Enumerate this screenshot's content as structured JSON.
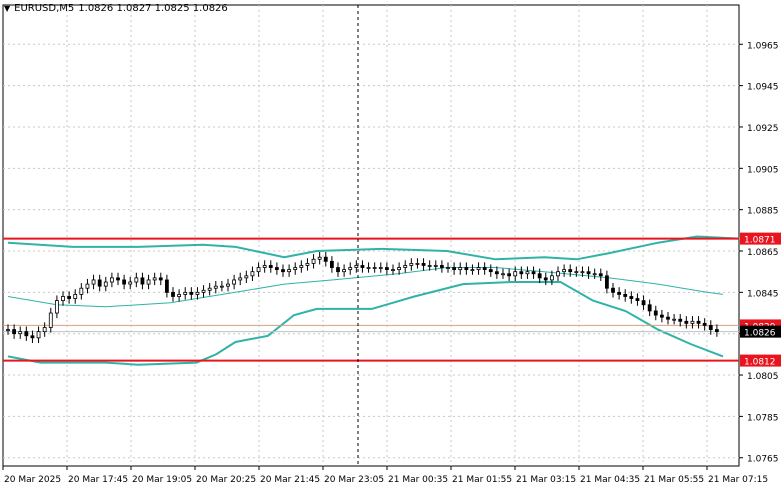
{
  "header": {
    "symbol_timeframe": "EURUSD,M5",
    "ohlc": "1.0826 1.0827 1.0825 1.0826",
    "menu_icon": "triangle-down-icon"
  },
  "colors": {
    "background": "#ffffff",
    "grid": "#c8c8c8",
    "candle": "#000000",
    "band": "#2fb3a8",
    "resistance_line": "#e8141e",
    "support_line": "#e8141e",
    "bid_line": "#c0c0c0",
    "price_label_bg": "#000000",
    "level_label_bg": "#e8141e"
  },
  "chart_data": {
    "type": "candlestick",
    "y_ticks": [
      "1.0965",
      "1.0945",
      "1.0925",
      "1.0905",
      "1.0885",
      "1.0865",
      "1.0845",
      "1.0825",
      "1.0805",
      "1.0785",
      "1.0765"
    ],
    "x_ticks": [
      "20 Mar 2025",
      "20 Mar 17:45",
      "20 Mar 19:05",
      "20 Mar 20:25",
      "20 Mar 21:45",
      "20 Mar 23:05",
      "21 Mar 00:35",
      "21 Mar 01:55",
      "21 Mar 03:15",
      "21 Mar 04:35",
      "21 Mar 05:55",
      "21 Mar 07:15"
    ],
    "ylim": [
      1.0761,
      1.0984
    ],
    "horizontal_levels": [
      {
        "label": "1.0871",
        "value": 1.0871,
        "style": "resistance"
      },
      {
        "label": "1.0829",
        "value": 1.0829,
        "style": "level"
      },
      {
        "label": "1.0812",
        "value": 1.0812,
        "style": "support"
      }
    ],
    "current_price": {
      "label": "1.0826",
      "value": 1.0826
    },
    "close_series": [
      1.0827,
      1.0825,
      1.0826,
      1.0824,
      1.0823,
      1.0826,
      1.0828,
      1.0835,
      1.0841,
      1.0843,
      1.0842,
      1.0844,
      1.0847,
      1.0849,
      1.0851,
      1.0848,
      1.085,
      1.0852,
      1.0851,
      1.0849,
      1.085,
      1.0852,
      1.0849,
      1.0851,
      1.0852,
      1.0851,
      1.0845,
      1.0843,
      1.0844,
      1.0845,
      1.0844,
      1.0845,
      1.0846,
      1.0847,
      1.0848,
      1.0848,
      1.0849,
      1.0851,
      1.0852,
      1.0853,
      1.0855,
      1.0857,
      1.0858,
      1.0857,
      1.0856,
      1.0855,
      1.0856,
      1.0857,
      1.0858,
      1.0859,
      1.0861,
      1.0862,
      1.086,
      1.0857,
      1.0855,
      1.0856,
      1.0857,
      1.0858,
      1.0857,
      1.0857,
      1.0857,
      1.0857,
      1.0856,
      1.0856,
      1.0857,
      1.0858,
      1.0859,
      1.0859,
      1.0858,
      1.0858,
      1.0858,
      1.0857,
      1.0857,
      1.0856,
      1.0857,
      1.0856,
      1.0856,
      1.0857,
      1.0856,
      1.0855,
      1.0854,
      1.0854,
      1.0853,
      1.0855,
      1.0854,
      1.0855,
      1.0854,
      1.0852,
      1.0851,
      1.0853,
      1.0855,
      1.0856,
      1.0855,
      1.0855,
      1.0855,
      1.0854,
      1.0854,
      1.0853,
      1.0847,
      1.0845,
      1.0844,
      1.0843,
      1.0842,
      1.0841,
      1.0839,
      1.0836,
      1.0834,
      1.0833,
      1.0832,
      1.0832,
      1.0831,
      1.083,
      1.0831,
      1.083,
      1.0829,
      1.0827,
      1.0826
    ],
    "bollinger": {
      "upper": [
        [
          0,
          1.0869
        ],
        [
          20,
          1.0867
        ],
        [
          40,
          1.0867
        ],
        [
          60,
          1.0868
        ],
        [
          70,
          1.0867
        ],
        [
          85,
          1.0862
        ],
        [
          95,
          1.0865
        ],
        [
          115,
          1.0866
        ],
        [
          135,
          1.0865
        ],
        [
          150,
          1.0861
        ],
        [
          165,
          1.0862
        ],
        [
          175,
          1.0861
        ],
        [
          185,
          1.0864
        ],
        [
          200,
          1.0869
        ],
        [
          212,
          1.0872
        ],
        [
          225,
          1.0871
        ]
      ],
      "middle": [
        [
          0,
          1.0843
        ],
        [
          15,
          1.0839
        ],
        [
          30,
          1.0838
        ],
        [
          50,
          1.084
        ],
        [
          70,
          1.0845
        ],
        [
          85,
          1.0849
        ],
        [
          100,
          1.0851
        ],
        [
          120,
          1.0854
        ],
        [
          135,
          1.0857
        ],
        [
          150,
          1.0857
        ],
        [
          165,
          1.0855
        ],
        [
          185,
          1.0852
        ],
        [
          200,
          1.0849
        ],
        [
          215,
          1.0845
        ],
        [
          220,
          1.0844
        ]
      ],
      "lower": [
        [
          0,
          1.0814
        ],
        [
          10,
          1.0811
        ],
        [
          30,
          1.0811
        ],
        [
          40,
          1.081
        ],
        [
          58,
          1.0811
        ],
        [
          64,
          1.0815
        ],
        [
          70,
          1.0821
        ],
        [
          80,
          1.0824
        ],
        [
          88,
          1.0834
        ],
        [
          95,
          1.0837
        ],
        [
          112,
          1.0837
        ],
        [
          125,
          1.0843
        ],
        [
          140,
          1.0849
        ],
        [
          155,
          1.085
        ],
        [
          170,
          1.085
        ],
        [
          180,
          1.0841
        ],
        [
          190,
          1.0836
        ],
        [
          200,
          1.0827
        ],
        [
          210,
          1.082
        ],
        [
          220,
          1.0814
        ]
      ]
    }
  }
}
